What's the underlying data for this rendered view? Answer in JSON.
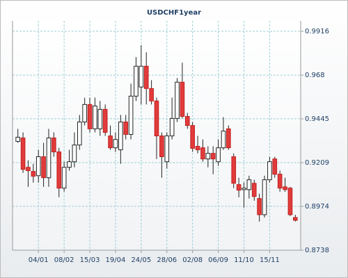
{
  "chart_data": {
    "type": "candlestick",
    "title": "USDCHF1year",
    "categories": [
      null,
      null,
      null,
      null,
      "04/01",
      null,
      null,
      null,
      null,
      "08/02",
      null,
      null,
      null,
      null,
      "15/03",
      null,
      null,
      null,
      null,
      "19/04",
      null,
      null,
      null,
      null,
      "24/05",
      null,
      null,
      null,
      null,
      "28/06",
      null,
      null,
      null,
      null,
      "02/08",
      null,
      null,
      null,
      null,
      "06/09",
      null,
      null,
      null,
      null,
      "11/10",
      null,
      null,
      null,
      null,
      "15/11",
      null,
      null,
      null,
      null,
      null
    ],
    "open": [
      0.9323,
      0.9342,
      0.9184,
      0.9162,
      0.9139,
      0.9241,
      0.9128,
      0.9342,
      0.9267,
      0.9072,
      0.9184,
      0.9214,
      0.9304,
      0.9428,
      0.9522,
      0.9391,
      0.9391,
      0.9496,
      0.9353,
      0.9289,
      0.9278,
      0.9428,
      0.9361,
      0.9567,
      0.9616,
      0.9728,
      0.9608,
      0.9541,
      0.9353,
      0.9214,
      0.9353,
      0.9447,
      0.9642,
      0.9458,
      0.9409,
      0.9297,
      0.9289,
      0.9229,
      0.9259,
      0.9214,
      0.9289,
      0.9391,
      0.9241,
      0.9091,
      0.9064,
      0.9064,
      0.9098,
      0.9016,
      0.8929,
      0.9117,
      0.9229,
      0.9147,
      0.9079,
      0.9072,
      0.8914
    ],
    "high": [
      0.9391,
      0.9372,
      0.9222,
      0.9203,
      0.9278,
      0.9316,
      0.9391,
      0.9372,
      0.9289,
      0.9214,
      0.9278,
      0.9372,
      0.9466,
      0.9559,
      0.9559,
      0.9559,
      0.9541,
      0.9522,
      0.9409,
      0.9372,
      0.9466,
      0.9466,
      0.9634,
      0.9777,
      0.9841,
      0.9803,
      0.9653,
      0.9559,
      0.9372,
      0.9372,
      0.9559,
      0.9664,
      0.9747,
      0.9477,
      0.9428,
      0.9353,
      0.9334,
      0.9297,
      0.9297,
      0.9334,
      0.9454,
      0.9409,
      0.9259,
      0.9128,
      0.9102,
      0.9139,
      0.9117,
      0.9042,
      0.9139,
      0.9241,
      0.9241,
      0.9166,
      0.9128,
      0.9079,
      0.8929
    ],
    "low": [
      0.9316,
      0.9154,
      0.9079,
      0.9102,
      0.9102,
      0.9079,
      0.9079,
      0.9241,
      0.9023,
      0.9053,
      0.9166,
      0.9184,
      0.9278,
      0.9409,
      0.9372,
      0.9372,
      0.9353,
      0.9353,
      0.9278,
      0.9267,
      0.9203,
      0.9334,
      0.9334,
      0.9541,
      0.9522,
      0.9522,
      0.9522,
      0.9229,
      0.9128,
      0.9177,
      0.9334,
      0.9428,
      0.9447,
      0.9391,
      0.9267,
      0.9259,
      0.9214,
      0.9184,
      0.9147,
      0.9192,
      0.9278,
      0.9278,
      0.9072,
      0.9023,
      0.8967,
      0.9016,
      0.9004,
      0.8892,
      0.8914,
      0.9102,
      0.9128,
      0.9053,
      0.9053,
      0.8922,
      0.8892
    ],
    "close": [
      0.9346,
      0.9173,
      0.9166,
      0.9136,
      0.9241,
      0.9128,
      0.9342,
      0.9267,
      0.9072,
      0.9184,
      0.9214,
      0.9304,
      0.9428,
      0.9522,
      0.9391,
      0.9514,
      0.9496,
      0.9372,
      0.9289,
      0.9334,
      0.9428,
      0.9361,
      0.9567,
      0.9728,
      0.9728,
      0.9608,
      0.9541,
      0.9353,
      0.9241,
      0.9353,
      0.9447,
      0.9642,
      0.9458,
      0.9409,
      0.9286,
      0.9278,
      0.9229,
      0.9259,
      0.9229,
      0.9289,
      0.9379,
      0.9289,
      0.9098,
      0.9061,
      0.9072,
      0.9117,
      0.9027,
      0.8929,
      0.9117,
      0.9214,
      0.9147,
      0.9072,
      0.9064,
      0.8929,
      0.8899
    ],
    "up_color": "#ffffff",
    "down_color": "#e23b3b",
    "ylim": [
      0.8738,
      0.9972
    ],
    "yticks": [
      0.8738,
      0.8974,
      0.9209,
      0.9445,
      0.968,
      0.9916
    ],
    "grid": true
  }
}
